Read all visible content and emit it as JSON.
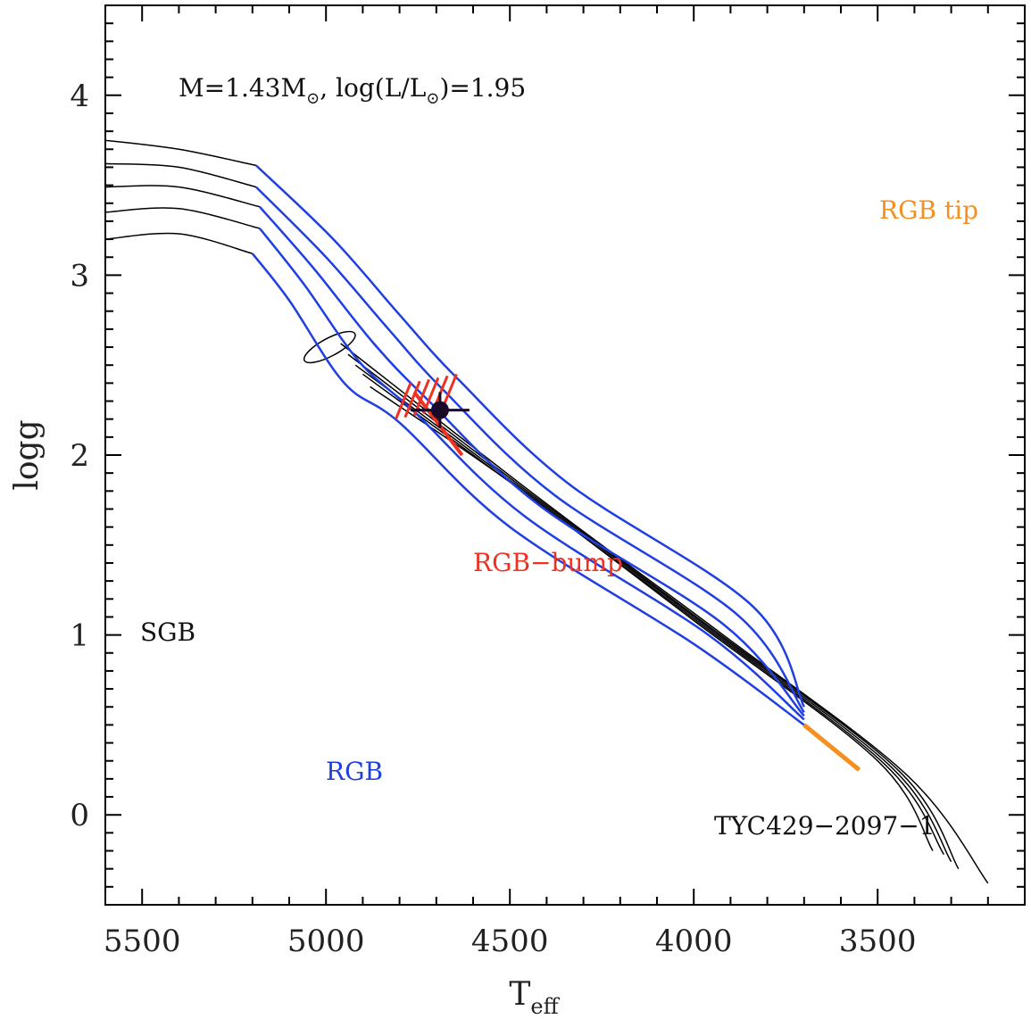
{
  "chart_data": {
    "type": "line",
    "title": "",
    "xlabel": "T",
    "xlabel_sub": "eff",
    "ylabel": "logg",
    "xlim": [
      5600,
      3100
    ],
    "ylim": [
      4.5,
      -0.5
    ],
    "x_ticks": [
      5500,
      5000,
      4500,
      4000,
      3500
    ],
    "y_ticks": [
      0,
      1,
      2,
      3,
      4
    ],
    "x_tick_labels": [
      "5500",
      "5000",
      "4500",
      "4000",
      "3500"
    ],
    "y_tick_labels": [
      "0",
      "1",
      "2",
      "3",
      "4"
    ],
    "grid": false,
    "annotations": {
      "mass_label": "M=1.43M",
      "mass_sun": "⊙",
      "lum_label": ", log(L/L",
      "lum_sun": "⊙",
      "lum_value": ")=1.95",
      "sgb": "SGB",
      "rgb": "RGB",
      "rgb_bump": "RGB−bump",
      "rgb_tip": "RGB tip",
      "star_id": "TYC429−2097−1"
    },
    "colors": {
      "sgb": "#000000",
      "rgb": "#1f3fe0",
      "rgb_bump": "#f03020",
      "rgb_tip": "#f59020",
      "star": "#1a0a2a"
    },
    "tracks": [
      {
        "sgb": [
          [
            5600,
            3.2
          ],
          [
            5400,
            3.23
          ],
          [
            5200,
            3.12
          ]
        ],
        "rgb": [
          [
            5200,
            3.12
          ],
          [
            5100,
            2.86
          ],
          [
            4950,
            2.4
          ],
          [
            4800,
            2.18
          ],
          [
            4500,
            1.6
          ],
          [
            4000,
            0.95
          ],
          [
            3700,
            0.5
          ]
        ]
      },
      {
        "sgb": [
          [
            5600,
            3.35
          ],
          [
            5400,
            3.37
          ],
          [
            5180,
            3.26
          ]
        ],
        "rgb": [
          [
            5180,
            3.26
          ],
          [
            5060,
            2.95
          ],
          [
            4910,
            2.52
          ],
          [
            4760,
            2.24
          ],
          [
            4460,
            1.66
          ],
          [
            3960,
            1.0
          ],
          [
            3700,
            0.53
          ]
        ]
      },
      {
        "sgb": [
          [
            5600,
            3.49
          ],
          [
            5400,
            3.49
          ],
          [
            5180,
            3.38
          ]
        ],
        "rgb": [
          [
            5180,
            3.38
          ],
          [
            5030,
            3.03
          ],
          [
            4870,
            2.62
          ],
          [
            4720,
            2.3
          ],
          [
            4420,
            1.72
          ],
          [
            3920,
            1.06
          ],
          [
            3700,
            0.55
          ]
        ]
      },
      {
        "sgb": [
          [
            5600,
            3.62
          ],
          [
            5400,
            3.6
          ],
          [
            5190,
            3.49
          ]
        ],
        "rgb": [
          [
            5190,
            3.49
          ],
          [
            5000,
            3.1
          ],
          [
            4830,
            2.7
          ],
          [
            4680,
            2.36
          ],
          [
            4380,
            1.78
          ],
          [
            3880,
            1.11
          ],
          [
            3700,
            0.57
          ]
        ]
      },
      {
        "sgb": [
          [
            5600,
            3.75
          ],
          [
            5400,
            3.7
          ],
          [
            5190,
            3.61
          ]
        ],
        "rgb": [
          [
            5190,
            3.61
          ],
          [
            4980,
            3.2
          ],
          [
            4800,
            2.78
          ],
          [
            4640,
            2.42
          ],
          [
            4340,
            1.84
          ],
          [
            3840,
            1.16
          ],
          [
            3700,
            0.6
          ]
        ]
      }
    ],
    "rgb_tip_segment": [
      [
        3700,
        0.5
      ],
      [
        3550,
        0.25
      ]
    ],
    "agb_tracks": [
      [
        [
          4880,
          2.38
        ],
        [
          4500,
          1.85
        ],
        [
          4000,
          1.08
        ],
        [
          3500,
          0.3
        ],
        [
          3350,
          -0.2
        ]
      ],
      [
        [
          4900,
          2.45
        ],
        [
          4480,
          1.82
        ],
        [
          3980,
          1.06
        ],
        [
          3480,
          0.28
        ],
        [
          3320,
          -0.22
        ]
      ],
      [
        [
          4920,
          2.5
        ],
        [
          4460,
          1.8
        ],
        [
          3960,
          1.04
        ],
        [
          3460,
          0.26
        ],
        [
          3300,
          -0.26
        ]
      ],
      [
        [
          4940,
          2.56
        ],
        [
          4440,
          1.78
        ],
        [
          3940,
          1.02
        ],
        [
          3440,
          0.24
        ],
        [
          3280,
          -0.3
        ]
      ],
      [
        [
          4960,
          2.62
        ],
        [
          4420,
          1.76
        ],
        [
          3920,
          1.0
        ],
        [
          3420,
          0.22
        ],
        [
          3200,
          -0.38
        ]
      ]
    ],
    "star": {
      "teff": 4690,
      "logg": 2.25,
      "teff_err": 80,
      "logg_err": 0.1
    }
  }
}
